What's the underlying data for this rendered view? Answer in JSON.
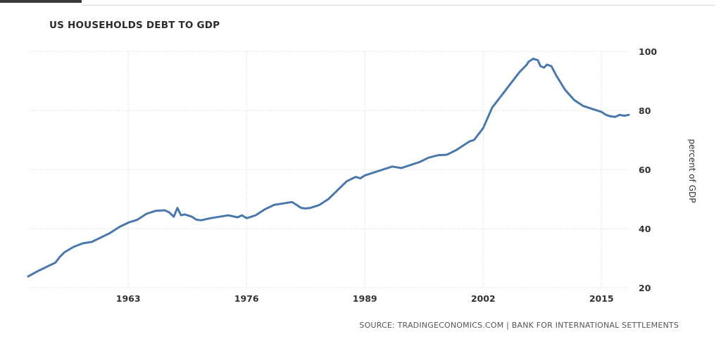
{
  "chart_data": {
    "type": "line",
    "title": "US HOUSEHOLDS DEBT TO GDP",
    "ylabel": "percent of GDP",
    "xlabel": "",
    "xlim": [
      1952,
      2018
    ],
    "ylim": [
      20,
      100
    ],
    "x_ticks": [
      1963,
      1976,
      1989,
      2002,
      2015
    ],
    "y_ticks": [
      20,
      40,
      60,
      80,
      100
    ],
    "grid": true,
    "legend": "none",
    "series": [
      {
        "color": "#4a78ab",
        "x": [
          1952.0,
          1953.0,
          1954.0,
          1955.0,
          1955.5,
          1956.0,
          1957.0,
          1958.0,
          1959.0,
          1960.0,
          1961.0,
          1962.0,
          1963.0,
          1964.0,
          1965.0,
          1966.0,
          1967.0,
          1967.5,
          1968.0,
          1968.4,
          1968.8,
          1969.2,
          1970.0,
          1970.5,
          1971.0,
          1972.0,
          1973.0,
          1974.0,
          1975.0,
          1975.5,
          1976.0,
          1977.0,
          1978.0,
          1979.0,
          1980.0,
          1981.0,
          1981.5,
          1982.0,
          1982.5,
          1983.0,
          1984.0,
          1985.0,
          1986.0,
          1987.0,
          1988.0,
          1988.5,
          1989.0,
          1990.0,
          1991.0,
          1992.0,
          1993.0,
          1994.0,
          1995.0,
          1996.0,
          1997.0,
          1998.0,
          1999.0,
          2000.0,
          2000.5,
          2001.0,
          2002.0,
          2003.0,
          2003.5,
          2004.0,
          2005.0,
          2006.0,
          2006.8,
          2007.0,
          2007.5,
          2008.0,
          2008.3,
          2008.7,
          2009.0,
          2009.5,
          2010.0,
          2011.0,
          2012.0,
          2013.0,
          2014.0,
          2015.0,
          2015.5,
          2016.0,
          2016.5,
          2017.0,
          2017.5,
          2018.0
        ],
        "y": [
          23.8,
          25.5,
          27.0,
          28.5,
          30.5,
          32.0,
          33.8,
          35.0,
          35.5,
          37.0,
          38.5,
          40.5,
          42.0,
          43.0,
          45.0,
          46.0,
          46.2,
          45.5,
          44.0,
          47.0,
          44.5,
          44.8,
          44.0,
          43.0,
          42.8,
          43.5,
          44.0,
          44.5,
          43.8,
          44.5,
          43.5,
          44.5,
          46.5,
          48.0,
          48.5,
          49.0,
          48.0,
          47.0,
          46.8,
          47.0,
          48.0,
          50.0,
          53.0,
          56.0,
          57.5,
          57.0,
          58.0,
          59.0,
          60.0,
          61.0,
          60.5,
          61.5,
          62.5,
          64.0,
          64.8,
          65.0,
          66.5,
          68.5,
          69.5,
          70.0,
          74.0,
          81.0,
          83.0,
          85.0,
          89.0,
          93.0,
          95.5,
          96.5,
          97.5,
          97.0,
          95.0,
          94.5,
          95.5,
          95.0,
          92.0,
          87.0,
          83.5,
          81.5,
          80.5,
          79.5,
          78.5,
          78.0,
          77.8,
          78.5,
          78.2,
          78.5
        ]
      }
    ],
    "source": "SOURCE: TRADINGECONOMICS.COM | BANK FOR INTERNATIONAL SETTLEMENTS"
  }
}
